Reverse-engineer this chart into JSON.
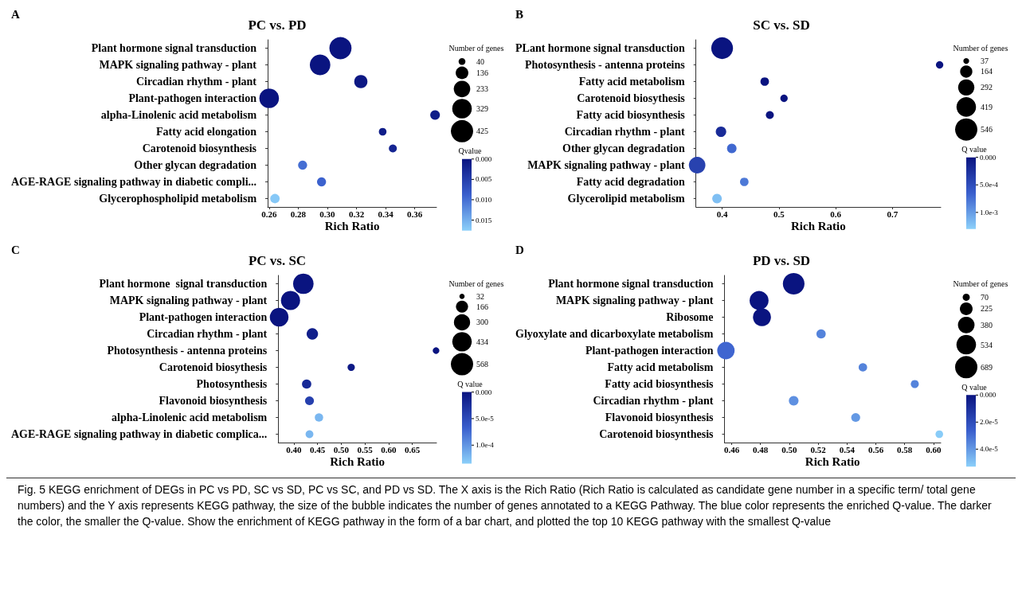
{
  "chart_data": [
    {
      "type": "bubble",
      "orientation": "horizontal",
      "title": "PC vs. PD",
      "xlabel": "Rich Ratio",
      "legend_title": "Number of genes",
      "clabel": "Qvalue",
      "marker": "circle",
      "categories": [
        "Plant hormone signal transduction",
        "MAPK signaling pathway - plant",
        "Circadian rhythm - plant",
        "Plant-pathogen interaction",
        "alpha-Linolenic acid metabolism",
        "Fatty acid elongation",
        "Carotenoid biosynthesis",
        "Other glycan degradation",
        "AGE-RAGE signaling pathway in diabetic compli...",
        "Glycerophospholipid metabolism"
      ],
      "values": [
        0.309,
        0.295,
        0.323,
        0.26,
        0.374,
        0.338,
        0.345,
        0.283,
        0.296,
        0.264
      ],
      "sizes": [
        420,
        360,
        150,
        330,
        80,
        50,
        55,
        70,
        70,
        75
      ],
      "size_legend": [
        40,
        136,
        233,
        329,
        425
      ],
      "cvalues": [
        0,
        0,
        0.0005,
        0,
        0.001,
        0.001,
        0.002,
        0.01,
        0.009,
        0.017
      ],
      "clim": [
        0,
        0.0176
      ],
      "cticks": [
        {
          "value": 0,
          "label": "0.000"
        },
        0.005,
        {
          "value": 0.01,
          "label": "0.010"
        },
        0.015
      ],
      "xlim": [
        0.259,
        0.375
      ],
      "xticks": [
        0.26,
        0.28,
        {
          "value": 0.3,
          "label": "0.30"
        },
        0.32,
        0.34,
        0.36
      ],
      "annotations": [
        "A"
      ]
    },
    {
      "type": "bubble",
      "orientation": "horizontal",
      "title": "SC vs. SD",
      "xlabel": "Rich Ratio",
      "legend_title": "Number of genes",
      "clabel": "Q value",
      "marker": "circle",
      "categories": [
        "PLant hormone signal transduction",
        "Photosynthesis - antenna proteins",
        "Fatty acid metabolism",
        "Carotenoid biosythesis",
        "Fatty acid biosynthesis",
        "Circadian rhythm - plant",
        "Other glycan degradation",
        "MAPK signaling pathway - plant",
        "Fatty acid degradation",
        "Glycerolipid metabolism"
      ],
      "values": [
        0.4,
        0.783,
        0.475,
        0.509,
        0.484,
        0.398,
        0.417,
        0.356,
        0.439,
        0.391
      ],
      "sizes": [
        520,
        60,
        80,
        60,
        70,
        120,
        100,
        300,
        80,
        100
      ],
      "size_legend": [
        37,
        164,
        292,
        419,
        546
      ],
      "cvalues": [
        0,
        0,
        0,
        0,
        0,
        0.0002,
        0.0007,
        0.0004,
        0.0008,
        0.0012
      ],
      "clim": [
        0,
        0.0013
      ],
      "cticks": [
        {
          "value": 0,
          "label": "0.000"
        },
        {
          "value": 0.0005,
          "label": "5.0e-4"
        },
        {
          "value": 0.001,
          "label": "1.0e-3"
        }
      ],
      "xlim": [
        0.354,
        0.785
      ],
      "xticks": [
        0.4,
        0.5,
        0.6,
        0.7
      ],
      "annotations": [
        "B"
      ]
    },
    {
      "type": "bubble",
      "orientation": "horizontal",
      "title": "PC vs. SC",
      "xlabel": "Rich Ratio",
      "legend_title": "Number of genes",
      "clabel": "Q value",
      "marker": "circle",
      "categories": [
        "Plant hormone  signal transduction",
        "MAPK signaling pathway - plant",
        "Plant-pathogen interaction",
        "Circadian rhythm - plant",
        "Photosynthesis - antenna proteins",
        "Carotenoid biosythesis",
        "Photosynthesis",
        "Flavonoid biosynthesis",
        "alpha-Linolenic acid metabolism",
        "AGE-RAGE signaling pathway in diabetic complica..."
      ],
      "values": [
        0.42,
        0.393,
        0.369,
        0.439,
        0.7,
        0.521,
        0.427,
        0.433,
        0.453,
        0.433
      ],
      "sizes": [
        480,
        420,
        400,
        150,
        50,
        60,
        100,
        90,
        80,
        70
      ],
      "size_legend": [
        32,
        166,
        300,
        434,
        568
      ],
      "cvalues": [
        0,
        0,
        0,
        1e-05,
        0,
        5e-06,
        2e-05,
        4e-05,
        0.00012,
        0.00012
      ],
      "clim": [
        0,
        0.000135
      ],
      "cticks": [
        {
          "value": 0,
          "label": "0.000"
        },
        {
          "value": 5e-05,
          "label": "5.0e-5"
        },
        {
          "value": 0.0001,
          "label": "1.0e-4"
        }
      ],
      "xlim": [
        0.367,
        0.701
      ],
      "xticks": [
        {
          "value": 0.4,
          "label": "0.40"
        },
        0.45,
        {
          "value": 0.5,
          "label": "0.50"
        },
        0.55,
        {
          "value": 0.6,
          "label": "0.60"
        },
        0.65
      ],
      "annotations": [
        "C"
      ]
    },
    {
      "type": "bubble",
      "orientation": "horizontal",
      "title": "PD vs. SD",
      "xlabel": "Rich Ratio",
      "legend_title": "Number of genes",
      "clabel": "Q value",
      "marker": "circle",
      "categories": [
        "Plant hormone signal transduction",
        "MAPK signaling pathway - plant",
        "Ribosome",
        "Glyoxylate and dicarboxylate metabolism",
        "Plant-pathogen interaction",
        "Fatty acid metabolism",
        "Fatty acid biosynthesis",
        "Circadian rhythm - plant",
        "Flavonoid biosynthesis",
        "Carotenoid biosynthesis"
      ],
      "values": [
        0.503,
        0.479,
        0.481,
        0.522,
        0.456,
        0.551,
        0.587,
        0.503,
        0.546,
        0.604
      ],
      "sizes": [
        650,
        500,
        450,
        120,
        420,
        100,
        90,
        130,
        110,
        80
      ],
      "size_legend": [
        70,
        225,
        380,
        534,
        689
      ],
      "cvalues": [
        0,
        0,
        0,
        3.5e-05,
        2.8e-05,
        3.5e-05,
        3.5e-05,
        3.8e-05,
        4e-05,
        5.2e-05
      ],
      "clim": [
        0,
        5.3e-05
      ],
      "cticks": [
        {
          "value": 0,
          "label": "0.000"
        },
        {
          "value": 2e-05,
          "label": "2.0e-5"
        },
        {
          "value": 4e-05,
          "label": "4.0e-5"
        }
      ],
      "xlim": [
        0.455,
        0.605
      ],
      "xticks": [
        0.46,
        0.48,
        {
          "value": 0.5,
          "label": "0.50"
        },
        0.52,
        0.54,
        0.56,
        0.58,
        {
          "value": 0.6,
          "label": "0.60"
        }
      ],
      "annotations": [
        "D",
        "Fig. 5 KEGG enrichment of DEGs in PC vs PD, SC vs SD, PC vs SC, and PD vs SD. The X axis is the Rich Ratio (Rich Ratio is calculated as candidate gene number in a specific term/ total gene numbers) and the Y axis represents KEGG pathway, the size of the bubble indicates the number of genes annotated to a KEGG Pathway. The blue color represents the enriched Q-value. The darker the color, the smaller the Q-value. Show the enrichment of KEGG pathway in the form of a bar chart, and plotted the top 10 KEGG pathway with the smallest Q-value"
      ]
    }
  ]
}
